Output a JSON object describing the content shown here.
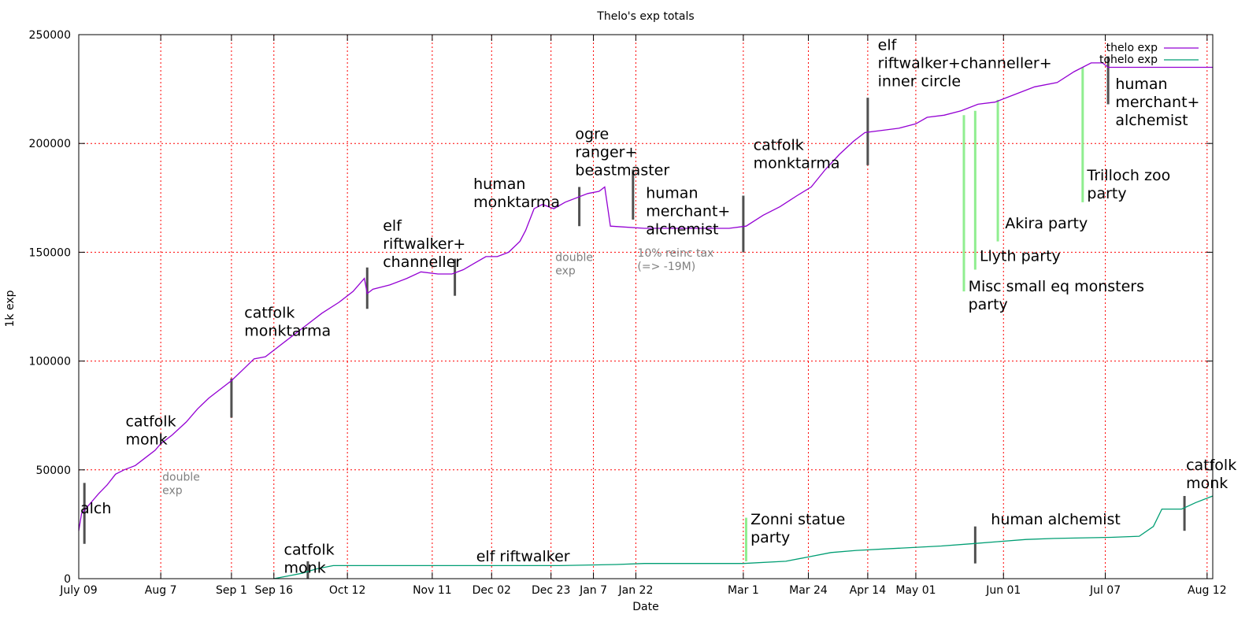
{
  "chart_data": {
    "type": "line",
    "title": "Thelo's exp totals",
    "xlabel": "Date",
    "ylabel": "1k exp",
    "ylim": [
      0,
      250000
    ],
    "yticks": [
      0,
      50000,
      100000,
      150000,
      200000,
      250000
    ],
    "ytick_labels": [
      "0",
      "50000",
      "100000",
      "150000",
      "200000",
      "250000"
    ],
    "x_unit": "days",
    "xlim": [
      0,
      401
    ],
    "xticks": [
      {
        "x": 0,
        "label": "July 09"
      },
      {
        "x": 29,
        "label": "Aug 7"
      },
      {
        "x": 54,
        "label": "Sep 1"
      },
      {
        "x": 69,
        "label": "Sep 16"
      },
      {
        "x": 95,
        "label": "Oct 12"
      },
      {
        "x": 125,
        "label": "Nov 11"
      },
      {
        "x": 146,
        "label": "Dec 02"
      },
      {
        "x": 167,
        "label": "Dec 23"
      },
      {
        "x": 182,
        "label": "Jan 7"
      },
      {
        "x": 197,
        "label": "Jan 22"
      },
      {
        "x": 235,
        "label": "Mar 1"
      },
      {
        "x": 258,
        "label": "Mar 24"
      },
      {
        "x": 279,
        "label": "Apr 14"
      },
      {
        "x": 296,
        "label": "May 01"
      },
      {
        "x": 327,
        "label": "Jun 01"
      },
      {
        "x": 363,
        "label": "Jul 07"
      },
      {
        "x": 399,
        "label": "Aug 12"
      }
    ],
    "grid": true,
    "legend_position": "top-right",
    "series": [
      {
        "name": "thelo exp",
        "color": "#9400d3",
        "points": [
          [
            0,
            22000
          ],
          [
            1,
            30000
          ],
          [
            3,
            33000
          ],
          [
            5,
            36000
          ],
          [
            7,
            39000
          ],
          [
            10,
            43000
          ],
          [
            13,
            48000
          ],
          [
            16,
            50000
          ],
          [
            20,
            52000
          ],
          [
            24,
            56000
          ],
          [
            27,
            59000
          ],
          [
            29,
            62000
          ],
          [
            33,
            66000
          ],
          [
            38,
            72000
          ],
          [
            42,
            78000
          ],
          [
            46,
            83000
          ],
          [
            50,
            87000
          ],
          [
            54,
            91000
          ],
          [
            58,
            96000
          ],
          [
            62,
            101000
          ],
          [
            66,
            102000
          ],
          [
            70,
            106000
          ],
          [
            75,
            111000
          ],
          [
            80,
            116000
          ],
          [
            86,
            122000
          ],
          [
            92,
            127000
          ],
          [
            97,
            132000
          ],
          [
            101,
            138000
          ],
          [
            102,
            131000
          ],
          [
            104,
            133000
          ],
          [
            110,
            135000
          ],
          [
            116,
            138000
          ],
          [
            121,
            141000
          ],
          [
            127,
            140000
          ],
          [
            132,
            140000
          ],
          [
            136,
            142000
          ],
          [
            140,
            145000
          ],
          [
            144,
            148000
          ],
          [
            148,
            148000
          ],
          [
            152,
            150000
          ],
          [
            156,
            155000
          ],
          [
            158,
            160000
          ],
          [
            161,
            170000
          ],
          [
            164,
            172000
          ],
          [
            168,
            170000
          ],
          [
            172,
            173000
          ],
          [
            176,
            175000
          ],
          [
            180,
            177000
          ],
          [
            184,
            178000
          ],
          [
            186,
            180000
          ],
          [
            188,
            162000
          ],
          [
            200,
            161000
          ],
          [
            212,
            161000
          ],
          [
            225,
            161000
          ],
          [
            230,
            161000
          ],
          [
            236,
            162000
          ],
          [
            242,
            167000
          ],
          [
            248,
            171000
          ],
          [
            254,
            176000
          ],
          [
            259,
            180000
          ],
          [
            264,
            188000
          ],
          [
            269,
            195000
          ],
          [
            274,
            201000
          ],
          [
            278,
            205000
          ],
          [
            284,
            206000
          ],
          [
            290,
            207000
          ],
          [
            296,
            209000
          ],
          [
            300,
            212000
          ],
          [
            306,
            213000
          ],
          [
            312,
            215000
          ],
          [
            318,
            218000
          ],
          [
            324,
            219000
          ],
          [
            330,
            222000
          ],
          [
            338,
            226000
          ],
          [
            346,
            228000
          ],
          [
            352,
            233000
          ],
          [
            358,
            237000
          ],
          [
            362,
            237000
          ],
          [
            364,
            235000
          ],
          [
            380,
            235000
          ],
          [
            401,
            235000
          ]
        ]
      },
      {
        "name": "tohelo exp",
        "color": "#009e73",
        "points": [
          [
            69,
            0
          ],
          [
            75,
            1500
          ],
          [
            79,
            2500
          ],
          [
            84,
            4500
          ],
          [
            90,
            6000
          ],
          [
            110,
            6000
          ],
          [
            150,
            6000
          ],
          [
            170,
            6000
          ],
          [
            190,
            6500
          ],
          [
            200,
            7000
          ],
          [
            235,
            7000
          ],
          [
            250,
            8000
          ],
          [
            258,
            10000
          ],
          [
            266,
            12000
          ],
          [
            275,
            13000
          ],
          [
            290,
            14000
          ],
          [
            305,
            15000
          ],
          [
            315,
            16000
          ],
          [
            325,
            17000
          ],
          [
            335,
            18000
          ],
          [
            345,
            18500
          ],
          [
            365,
            19000
          ],
          [
            375,
            19500
          ],
          [
            380,
            24000
          ],
          [
            383,
            32000
          ],
          [
            390,
            32000
          ],
          [
            395,
            35000
          ],
          [
            401,
            38000
          ]
        ]
      }
    ],
    "annotations": [
      {
        "text": "alch",
        "x": 0,
        "y": 30000,
        "size": "big",
        "lines": [
          "alch"
        ]
      },
      {
        "text": "catfolk monk",
        "x": 16,
        "y": 70000,
        "size": "big",
        "lines": [
          "catfolk",
          "monk"
        ]
      },
      {
        "text": "double exp",
        "x": 29,
        "y": 45000,
        "size": "small",
        "lines": [
          "double",
          "exp"
        ]
      },
      {
        "text": "catfolk monktarma",
        "x": 58,
        "y": 120000,
        "size": "big",
        "lines": [
          "catfolk",
          "monktarma"
        ]
      },
      {
        "text": "elf riftwalker+ channeller",
        "x": 107,
        "y": 160000,
        "size": "big",
        "lines": [
          "elf",
          "riftwalker+",
          "channeller"
        ]
      },
      {
        "text": "human monktarma",
        "x": 139,
        "y": 179000,
        "size": "big",
        "lines": [
          "human",
          "monktarma"
        ]
      },
      {
        "text": "double exp",
        "x": 168,
        "y": 146000,
        "size": "small",
        "lines": [
          "double",
          "exp"
        ]
      },
      {
        "text": "ogre ranger+ beastmaster",
        "x": 175,
        "y": 202000,
        "size": "big",
        "lines": [
          "ogre",
          "ranger+",
          "beastmaster"
        ]
      },
      {
        "text": "human merchant+ alchemist",
        "x": 200,
        "y": 175000,
        "size": "big",
        "lines": [
          "human",
          "merchant+",
          "alchemist"
        ]
      },
      {
        "text": "10% reinc tax (=> -19M)",
        "x": 197,
        "y": 148000,
        "size": "small",
        "lines": [
          "10% reinc tax",
          "(=> -19M)"
        ]
      },
      {
        "text": "catfolk monktarma",
        "x": 238,
        "y": 197000,
        "size": "big",
        "lines": [
          "catfolk",
          "monktarma"
        ]
      },
      {
        "text": "elf riftwalker+channeller+ inner circle",
        "x": 282,
        "y": 243000,
        "size": "big",
        "lines": [
          "elf",
          "riftwalker+channeller+",
          "inner circle"
        ]
      },
      {
        "text": "human merchant+ alchemist",
        "x": 366,
        "y": 225000,
        "size": "big",
        "lines": [
          "human",
          "merchant+",
          "alchemist"
        ]
      },
      {
        "text": "Trilloch zoo party",
        "x": 356,
        "y": 183000,
        "size": "big",
        "lines": [
          "Trilloch zoo",
          "party"
        ]
      },
      {
        "text": "Akira party",
        "x": 327,
        "y": 161000,
        "size": "big",
        "lines": [
          "Akira party"
        ]
      },
      {
        "text": "Llyth party",
        "x": 318,
        "y": 146000,
        "size": "big",
        "lines": [
          "Llyth party"
        ]
      },
      {
        "text": "Misc small eq monsters party",
        "x": 314,
        "y": 132000,
        "size": "big",
        "lines": [
          "Misc small eq monsters",
          "party"
        ]
      },
      {
        "text": "catfolk monk",
        "x": 72,
        "y": 11000,
        "size": "big",
        "lines": [
          "catfolk",
          "monk"
        ]
      },
      {
        "text": "elf riftwalker",
        "x": 140,
        "y": 8000,
        "size": "big",
        "lines": [
          "elf riftwalker"
        ]
      },
      {
        "text": "Zonni statue party",
        "x": 237,
        "y": 25000,
        "size": "big",
        "lines": [
          "Zonni statue",
          "party"
        ]
      },
      {
        "text": "human alchemist",
        "x": 322,
        "y": 25000,
        "size": "big",
        "lines": [
          "human alchemist"
        ]
      },
      {
        "text": "catfolk monk",
        "x": 391,
        "y": 50000,
        "size": "big",
        "lines": [
          "catfolk",
          "monk"
        ]
      }
    ],
    "event_markers": [
      {
        "x": 2,
        "y1": 16000,
        "y2": 44000,
        "color": "#505050"
      },
      {
        "x": 54,
        "y1": 74000,
        "y2": 92000,
        "color": "#505050"
      },
      {
        "x": 81,
        "y1": 0,
        "y2": 8000,
        "color": "#505050"
      },
      {
        "x": 102,
        "y1": 124000,
        "y2": 143000,
        "color": "#505050"
      },
      {
        "x": 133,
        "y1": 130000,
        "y2": 147000,
        "color": "#505050"
      },
      {
        "x": 177,
        "y1": 162000,
        "y2": 180000,
        "color": "#505050"
      },
      {
        "x": 196,
        "y1": 165000,
        "y2": 188000,
        "color": "#505050"
      },
      {
        "x": 235,
        "y1": 150000,
        "y2": 176000,
        "color": "#505050"
      },
      {
        "x": 279,
        "y1": 190000,
        "y2": 221000,
        "color": "#505050"
      },
      {
        "x": 317,
        "y1": 7000,
        "y2": 24000,
        "color": "#505050"
      },
      {
        "x": 364,
        "y1": 218000,
        "y2": 240000,
        "color": "#505050"
      },
      {
        "x": 391,
        "y1": 22000,
        "y2": 38000,
        "color": "#505050"
      },
      {
        "x": 313,
        "y1": 132000,
        "y2": 213000,
        "color": "#90ee90"
      },
      {
        "x": 317,
        "y1": 142000,
        "y2": 215000,
        "color": "#90ee90"
      },
      {
        "x": 325,
        "y1": 155000,
        "y2": 220000,
        "color": "#90ee90"
      },
      {
        "x": 355,
        "y1": 173000,
        "y2": 235000,
        "color": "#90ee90"
      },
      {
        "x": 236,
        "y1": 8000,
        "y2": 28000,
        "color": "#90ee90"
      }
    ]
  }
}
